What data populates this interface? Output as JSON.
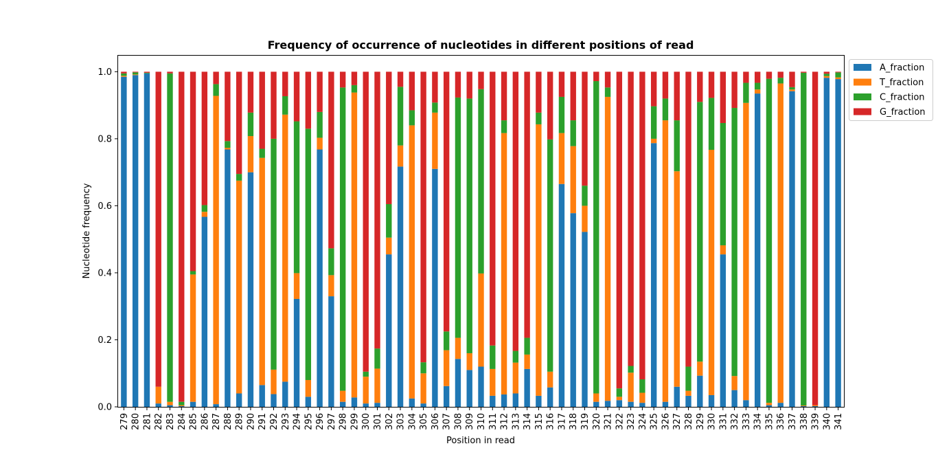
{
  "chart_data": {
    "type": "bar",
    "stacked": true,
    "title": "Frequency of occurrence of nucleotides in different positions of read",
    "xlabel": "Position in read",
    "ylabel": "Nucleotide frequency",
    "ylim": [
      0,
      1.05
    ],
    "yticks": [
      "0.0",
      "0.2",
      "0.4",
      "0.6",
      "0.8",
      "1.0"
    ],
    "legend_position": "outside-top-right",
    "grid": false,
    "categories": [
      "279",
      "280",
      "281",
      "282",
      "283",
      "284",
      "285",
      "286",
      "287",
      "288",
      "289",
      "290",
      "291",
      "292",
      "293",
      "294",
      "295",
      "296",
      "297",
      "298",
      "299",
      "300",
      "301",
      "302",
      "303",
      "304",
      "305",
      "306",
      "307",
      "308",
      "309",
      "310",
      "311",
      "312",
      "313",
      "314",
      "315",
      "316",
      "317",
      "318",
      "319",
      "320",
      "321",
      "322",
      "323",
      "324",
      "325",
      "326",
      "327",
      "328",
      "329",
      "330",
      "331",
      "332",
      "333",
      "334",
      "335",
      "336",
      "337",
      "338",
      "339",
      "340",
      "341"
    ],
    "series": [
      {
        "name": "A_fraction",
        "color": "#1f77b4",
        "values": [
          0.985,
          0.99,
          0.995,
          0.01,
          0.005,
          0.002,
          0.015,
          0.567,
          0.008,
          0.768,
          0.04,
          0.7,
          0.065,
          0.038,
          0.075,
          0.322,
          0.03,
          0.768,
          0.33,
          0.015,
          0.028,
          0.01,
          0.012,
          0.455,
          0.717,
          0.025,
          0.01,
          0.71,
          0.062,
          0.143,
          0.11,
          0.12,
          0.033,
          0.037,
          0.04,
          0.113,
          0.033,
          0.058,
          0.665,
          0.578,
          0.522,
          0.015,
          0.018,
          0.02,
          0.015,
          0.012,
          0.787,
          0.015,
          0.06,
          0.033,
          0.093,
          0.035,
          0.455,
          0.05,
          0.02,
          0.935,
          0.005,
          0.012,
          0.942,
          0.002,
          0.002,
          0.982,
          0.978
        ]
      },
      {
        "name": "T_fraction",
        "color": "#ff7f0e",
        "values": [
          0.003,
          0.002,
          0.0,
          0.05,
          0.01,
          0.003,
          0.38,
          0.015,
          0.92,
          0.005,
          0.635,
          0.108,
          0.678,
          0.073,
          0.797,
          0.077,
          0.05,
          0.035,
          0.063,
          0.033,
          0.91,
          0.08,
          0.102,
          0.05,
          0.063,
          0.815,
          0.09,
          0.168,
          0.107,
          0.063,
          0.05,
          0.278,
          0.08,
          0.78,
          0.092,
          0.043,
          0.81,
          0.047,
          0.152,
          0.2,
          0.078,
          0.025,
          0.907,
          0.01,
          0.087,
          0.03,
          0.013,
          0.84,
          0.643,
          0.015,
          0.042,
          0.732,
          0.027,
          0.042,
          0.887,
          0.012,
          0.007,
          0.953,
          0.005,
          0.002,
          0.003,
          0.005,
          0.005
        ]
      },
      {
        "name": "C_fraction",
        "color": "#2ca02c",
        "values": [
          0.007,
          0.006,
          0.002,
          0.0,
          0.98,
          0.01,
          0.01,
          0.02,
          0.035,
          0.02,
          0.02,
          0.07,
          0.027,
          0.689,
          0.055,
          0.453,
          0.75,
          0.077,
          0.08,
          0.905,
          0.022,
          0.015,
          0.06,
          0.1,
          0.175,
          0.045,
          0.033,
          0.03,
          0.056,
          0.717,
          0.76,
          0.55,
          0.07,
          0.038,
          0.035,
          0.05,
          0.035,
          0.693,
          0.108,
          0.077,
          0.06,
          0.932,
          0.028,
          0.025,
          0.02,
          0.04,
          0.097,
          0.065,
          0.152,
          0.072,
          0.775,
          0.155,
          0.365,
          0.8,
          0.06,
          0.02,
          0.967,
          0.017,
          0.007,
          0.993,
          0.0,
          0.007,
          0.015
        ]
      },
      {
        "name": "G_fraction",
        "color": "#d62728",
        "values": [
          0.005,
          0.002,
          0.003,
          0.94,
          0.005,
          0.985,
          0.595,
          0.398,
          0.037,
          0.207,
          0.305,
          0.122,
          0.23,
          0.2,
          0.073,
          0.148,
          0.17,
          0.12,
          0.527,
          0.047,
          0.04,
          0.895,
          0.826,
          0.395,
          0.045,
          0.115,
          0.867,
          0.092,
          0.775,
          0.077,
          0.08,
          0.052,
          0.817,
          0.145,
          0.833,
          0.794,
          0.122,
          0.202,
          0.075,
          0.145,
          0.34,
          0.028,
          0.047,
          0.945,
          0.878,
          0.918,
          0.103,
          0.08,
          0.145,
          0.88,
          0.09,
          0.078,
          0.153,
          0.108,
          0.033,
          0.033,
          0.021,
          0.018,
          0.046,
          0.003,
          0.995,
          0.006,
          0.002
        ]
      }
    ]
  }
}
